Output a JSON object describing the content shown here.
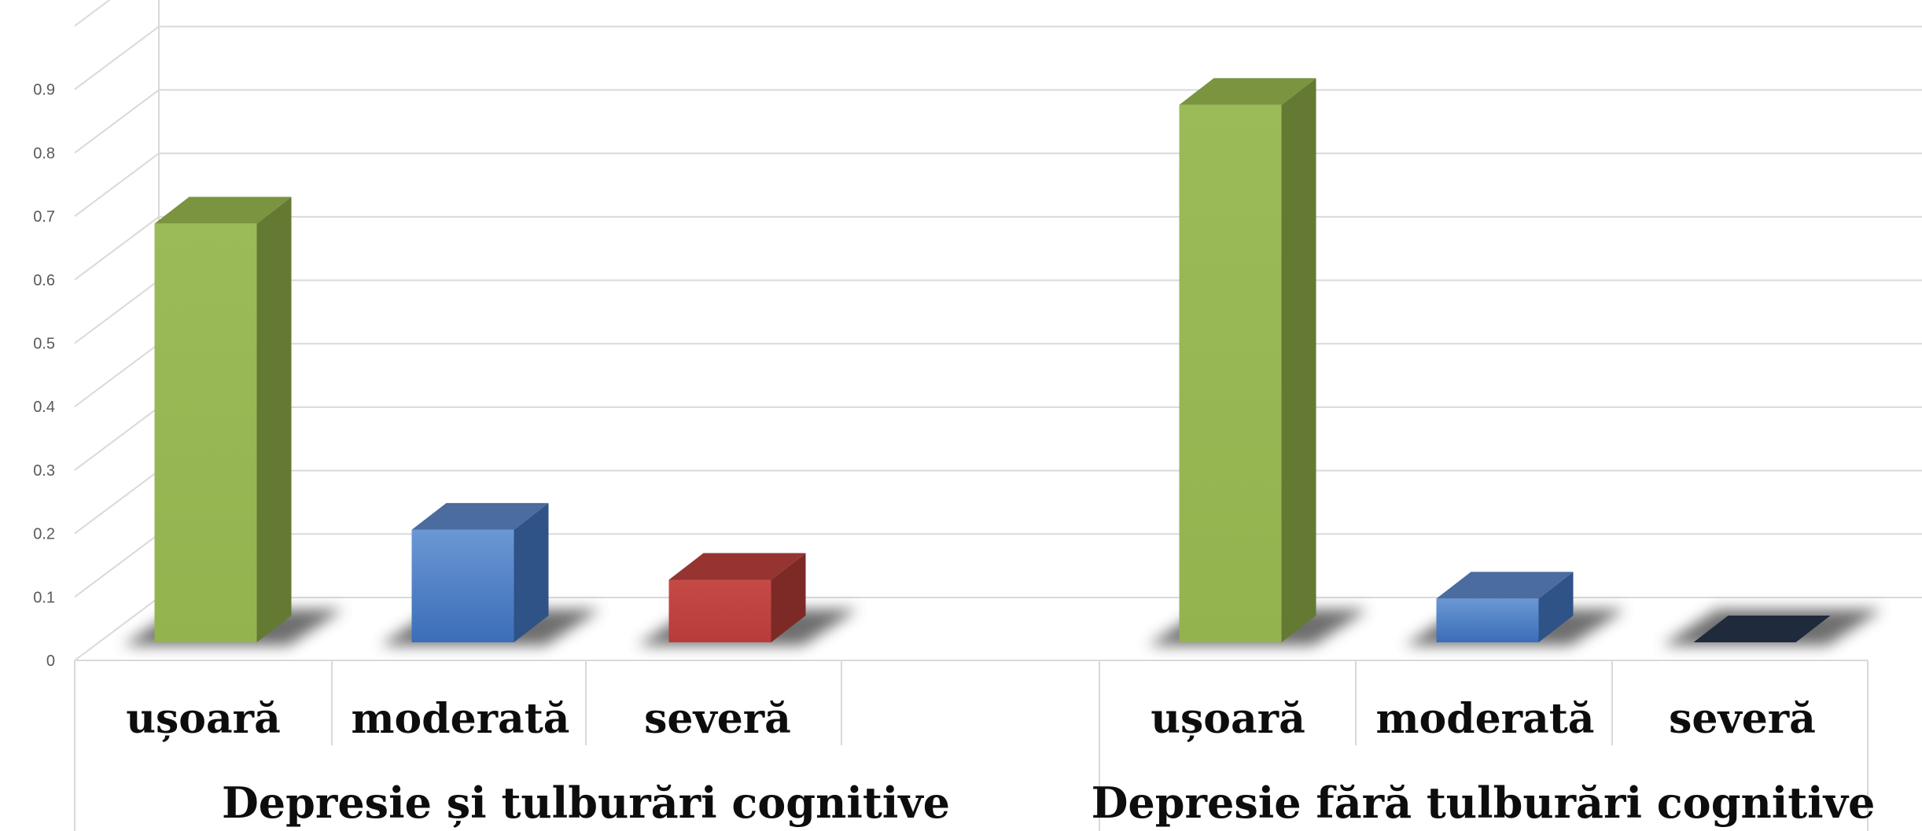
{
  "chart_data": {
    "type": "bar",
    "style": "3d-clustered-column",
    "ylim": [
      0,
      1
    ],
    "y_ticks": [
      "0",
      "0.1",
      "0.2",
      "0.3",
      "0.4",
      "0.5",
      "0.6",
      "0.7",
      "0.8",
      "0.9"
    ],
    "grid": true,
    "groups": [
      {
        "label": "Depresie și tulburări cognitive",
        "categories": [
          "ușoară",
          "moderată",
          "severă"
        ],
        "values": [
          0.67,
          0.18,
          0.1
        ]
      },
      {
        "label": "Depresie fără tulburări cognitive",
        "categories": [
          "ușoară",
          "moderată",
          "severă"
        ],
        "values": [
          0.86,
          0.07,
          0.0
        ]
      }
    ],
    "colors": {
      "ușoară": "#9bbb59",
      "moderată": "#4f81bd",
      "severă": "#c0504d",
      "zero_bar": "#1f2a3d"
    }
  }
}
